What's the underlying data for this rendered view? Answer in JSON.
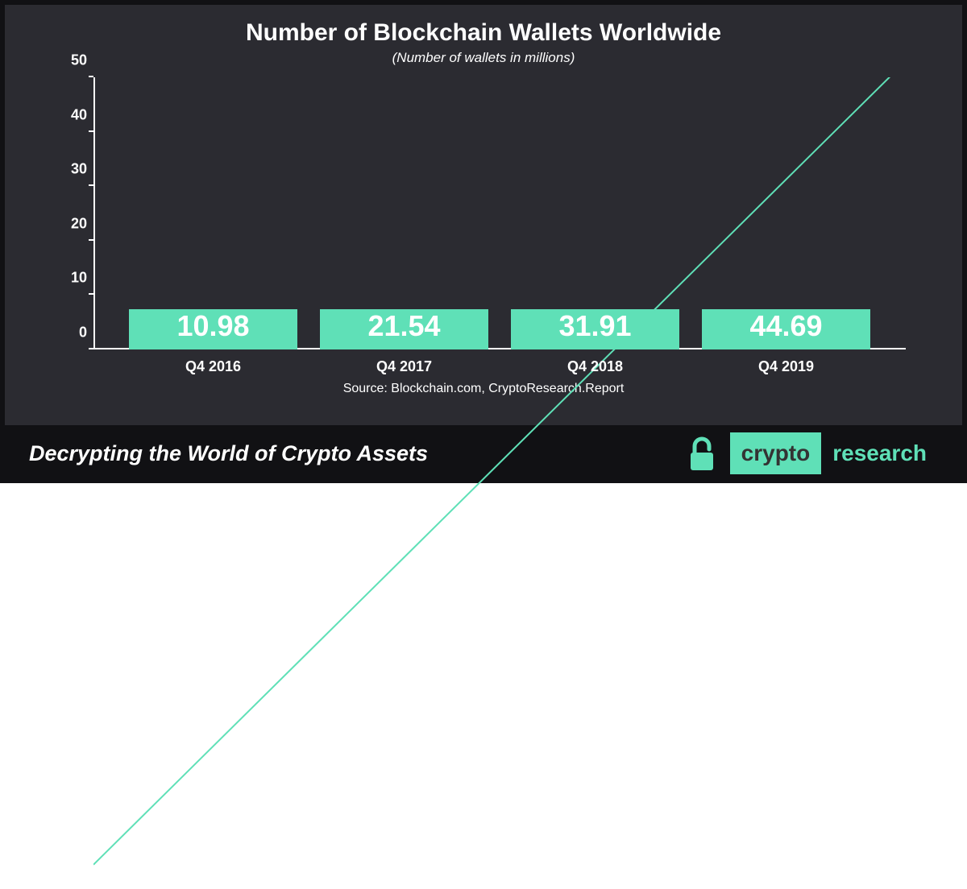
{
  "chart": {
    "type": "bar",
    "title": "Number of Blockchain Wallets Worldwide",
    "subtitle": "(Number of wallets in millions)",
    "title_fontsize": 30,
    "subtitle_fontsize": 17,
    "title_color": "#ffffff",
    "subtitle_color": "#ffffff",
    "background_color": "#2b2b31",
    "border_color": "#111114",
    "axis_color": "#ffffff",
    "ylim": [
      0,
      50
    ],
    "ytick_step": 10,
    "yticks": [
      0,
      10,
      20,
      30,
      40,
      50
    ],
    "ytick_fontsize": 18,
    "ytick_color": "#ffffff",
    "categories": [
      "Q4 2016",
      "Q4 2017",
      "Q4 2018",
      "Q4 2019"
    ],
    "category_fontsize": 18,
    "category_color": "#ffffff",
    "values": [
      10.98,
      21.54,
      31.91,
      44.69
    ],
    "value_labels": [
      "10.98",
      "21.54",
      "31.91",
      "44.69"
    ],
    "value_label_fontsize": 36,
    "value_label_color": "#ffffff",
    "bar_color": "#5fe0b7",
    "bar_width_pct": 100,
    "trend_line_color": "#5fe0b7",
    "trend_line_width": 2,
    "source": "Source: Blockchain.com, CryptoResearch.Report",
    "source_fontsize": 16,
    "source_color": "#ffffff"
  },
  "footer": {
    "background_color": "#111114",
    "border_color": "#111114",
    "tagline": "Decrypting the World of Crypto Assets",
    "tagline_fontsize": 27,
    "tagline_color": "#ffffff",
    "lock_color": "#5fe0b7",
    "logo_left_text": "crypto",
    "logo_right_text": "research",
    "logo_left_bg": "#5fe0b7",
    "logo_left_color": "#333333",
    "logo_right_bg": "transparent",
    "logo_right_color": "#5fe0b7",
    "logo_fontsize": 28
  }
}
